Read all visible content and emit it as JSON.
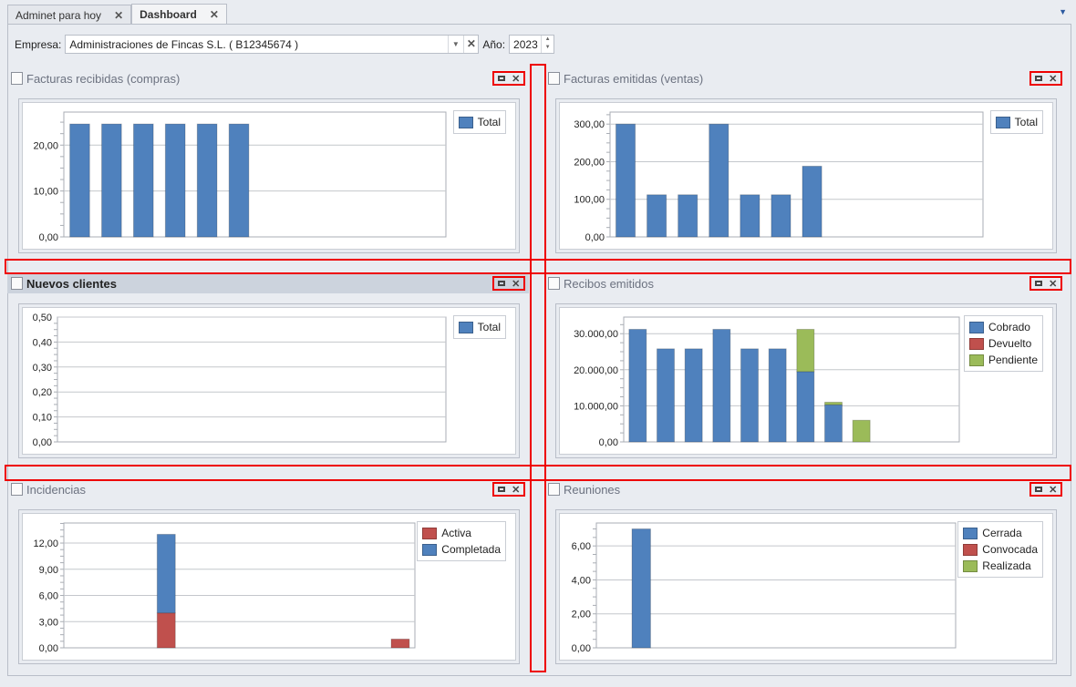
{
  "tabs": [
    {
      "label": "Adminet para hoy",
      "active": false
    },
    {
      "label": "Dashboard",
      "active": true
    }
  ],
  "toolbar": {
    "empresa_label": "Empresa:",
    "empresa_value": "Administraciones de Fincas S.L. ( B12345674 )",
    "anio_label": "Año:",
    "anio_value": "2023"
  },
  "colors": {
    "blue": "#4f81bd",
    "red": "#c0504d",
    "green": "#9bbb59",
    "highlight": "#e00000"
  },
  "panels": [
    {
      "title": "Facturas recibidas (compras)",
      "icon": "invoice-icon",
      "selected": false
    },
    {
      "title": "Facturas emitidas (ventas)",
      "icon": "invoice-icon",
      "selected": false
    },
    {
      "title": "Nuevos clientes",
      "icon": "client-icon",
      "selected": true
    },
    {
      "title": "Recibos emitidos",
      "icon": "receipt-icon",
      "selected": false
    },
    {
      "title": "Incidencias",
      "icon": "incident-icon",
      "selected": false
    },
    {
      "title": "Reuniones",
      "icon": "meeting-icon",
      "selected": false
    }
  ],
  "chart_data": [
    {
      "type": "bar",
      "stacked": true,
      "categories": 12,
      "ylim": [
        0,
        27.2
      ],
      "yticks": [
        0,
        10,
        20
      ],
      "ytick_labels": [
        "0,00",
        "10,00",
        "20,00"
      ],
      "legend_placement": "top-right",
      "grid": true,
      "series": [
        {
          "name": "Total",
          "color": "#4f81bd",
          "values": [
            24.6,
            24.6,
            24.6,
            24.6,
            24.6,
            24.6,
            0,
            0,
            0,
            0,
            0,
            0
          ]
        }
      ]
    },
    {
      "type": "bar",
      "stacked": true,
      "categories": 12,
      "ylim": [
        0,
        332
      ],
      "yticks": [
        0,
        100,
        200,
        300
      ],
      "ytick_labels": [
        "0,00",
        "100,00",
        "200,00",
        "300,00"
      ],
      "legend_placement": "top-right",
      "grid": true,
      "series": [
        {
          "name": "Total",
          "color": "#4f81bd",
          "values": [
            300,
            112,
            112,
            300,
            112,
            112,
            188,
            0,
            0,
            0,
            0,
            0
          ]
        }
      ]
    },
    {
      "type": "bar",
      "stacked": true,
      "categories": 12,
      "ylim": [
        0,
        0.5
      ],
      "yticks": [
        0,
        0.1,
        0.2,
        0.3,
        0.4,
        0.5
      ],
      "ytick_labels": [
        "0,00",
        "0,10",
        "0,20",
        "0,30",
        "0,40",
        "0,50"
      ],
      "legend_placement": "top-right",
      "grid": true,
      "series": [
        {
          "name": "Total",
          "color": "#4f81bd",
          "values": [
            0,
            0,
            0,
            0,
            0,
            0,
            0,
            0,
            0,
            0,
            0,
            0
          ]
        }
      ]
    },
    {
      "type": "bar",
      "stacked": true,
      "categories": 12,
      "ylim": [
        0,
        34600
      ],
      "yticks": [
        0,
        10000,
        20000,
        30000
      ],
      "ytick_labels": [
        "0,00",
        "10.000,00",
        "20.000,00",
        "30.000,00"
      ],
      "legend_placement": "top-right",
      "grid": true,
      "series": [
        {
          "name": "Cobrado",
          "color": "#4f81bd",
          "values": [
            31200,
            25800,
            25800,
            31200,
            25800,
            25800,
            19500,
            10300,
            0,
            0,
            0,
            0
          ]
        },
        {
          "name": "Devuelto",
          "color": "#c0504d",
          "values": [
            0,
            0,
            0,
            0,
            0,
            0,
            0,
            0,
            0,
            0,
            0,
            0
          ]
        },
        {
          "name": "Pendiente",
          "color": "#9bbb59",
          "values": [
            0,
            0,
            0,
            0,
            0,
            0,
            11700,
            700,
            6000,
            0,
            0,
            0
          ]
        }
      ]
    },
    {
      "type": "bar",
      "stacked": true,
      "categories": 12,
      "ylim": [
        0,
        14.3
      ],
      "yticks": [
        0,
        3,
        6,
        9,
        12
      ],
      "ytick_labels": [
        "0,00",
        "3,00",
        "6,00",
        "9,00",
        "12,00"
      ],
      "legend_placement": "top-right",
      "grid": true,
      "series": [
        {
          "name": "Activa",
          "color": "#c0504d",
          "values": [
            0,
            0,
            0,
            4,
            0,
            0,
            0,
            0,
            0,
            0,
            0,
            1
          ]
        },
        {
          "name": "Completada",
          "color": "#4f81bd",
          "values": [
            0,
            0,
            0,
            9,
            0,
            0,
            0,
            0,
            0,
            0,
            0,
            0
          ]
        }
      ]
    },
    {
      "type": "bar",
      "stacked": true,
      "categories": 12,
      "ylim": [
        0,
        7.35
      ],
      "yticks": [
        0,
        2,
        4,
        6
      ],
      "ytick_labels": [
        "0,00",
        "2,00",
        "4,00",
        "6,00"
      ],
      "legend_placement": "top-right",
      "grid": true,
      "series": [
        {
          "name": "Cerrada",
          "color": "#4f81bd",
          "values": [
            0,
            7,
            0,
            0,
            0,
            0,
            0,
            0,
            0,
            0,
            0,
            0
          ]
        },
        {
          "name": "Convocada",
          "color": "#c0504d",
          "values": [
            0,
            0,
            0,
            0,
            0,
            0,
            0,
            0,
            0,
            0,
            0,
            0
          ]
        },
        {
          "name": "Realizada",
          "color": "#9bbb59",
          "values": [
            0,
            0,
            0,
            0,
            0,
            0,
            0,
            0,
            0,
            0,
            0,
            0
          ]
        }
      ]
    }
  ]
}
